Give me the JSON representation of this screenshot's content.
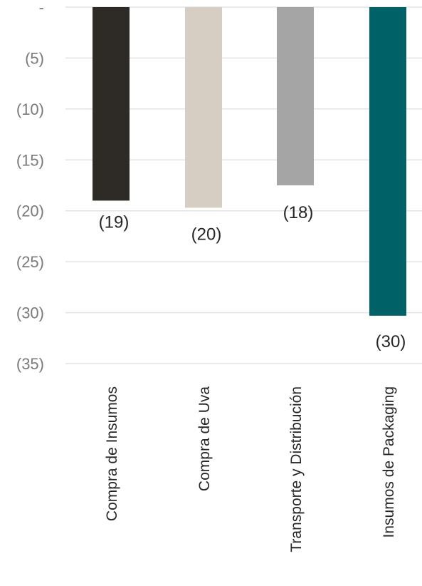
{
  "chart_data": {
    "type": "bar",
    "categories": [
      "Compra de Insumos",
      "Compra de Uva",
      "Transporte y Distribución",
      "Insumos de Packaging"
    ],
    "values": [
      -19,
      -19.7,
      -17.5,
      -30.3
    ],
    "data_labels": [
      "(19)",
      "(20)",
      "(18)",
      "(30)"
    ],
    "colors": [
      "#2e2a26",
      "#d6cec2",
      "#a5a5a5",
      "#006266"
    ],
    "ylim": [
      -35,
      0
    ],
    "yticks": [
      0,
      -5,
      -10,
      -15,
      -20,
      -25,
      -30,
      -35
    ],
    "ytick_labels": [
      "-",
      "(5)",
      "(10)",
      "(15)",
      "(20)",
      "(25)",
      "(30)",
      "(35)"
    ],
    "grid": true,
    "gridline_color": "#e3e3e3",
    "title": "",
    "xlabel": "",
    "ylabel": ""
  }
}
